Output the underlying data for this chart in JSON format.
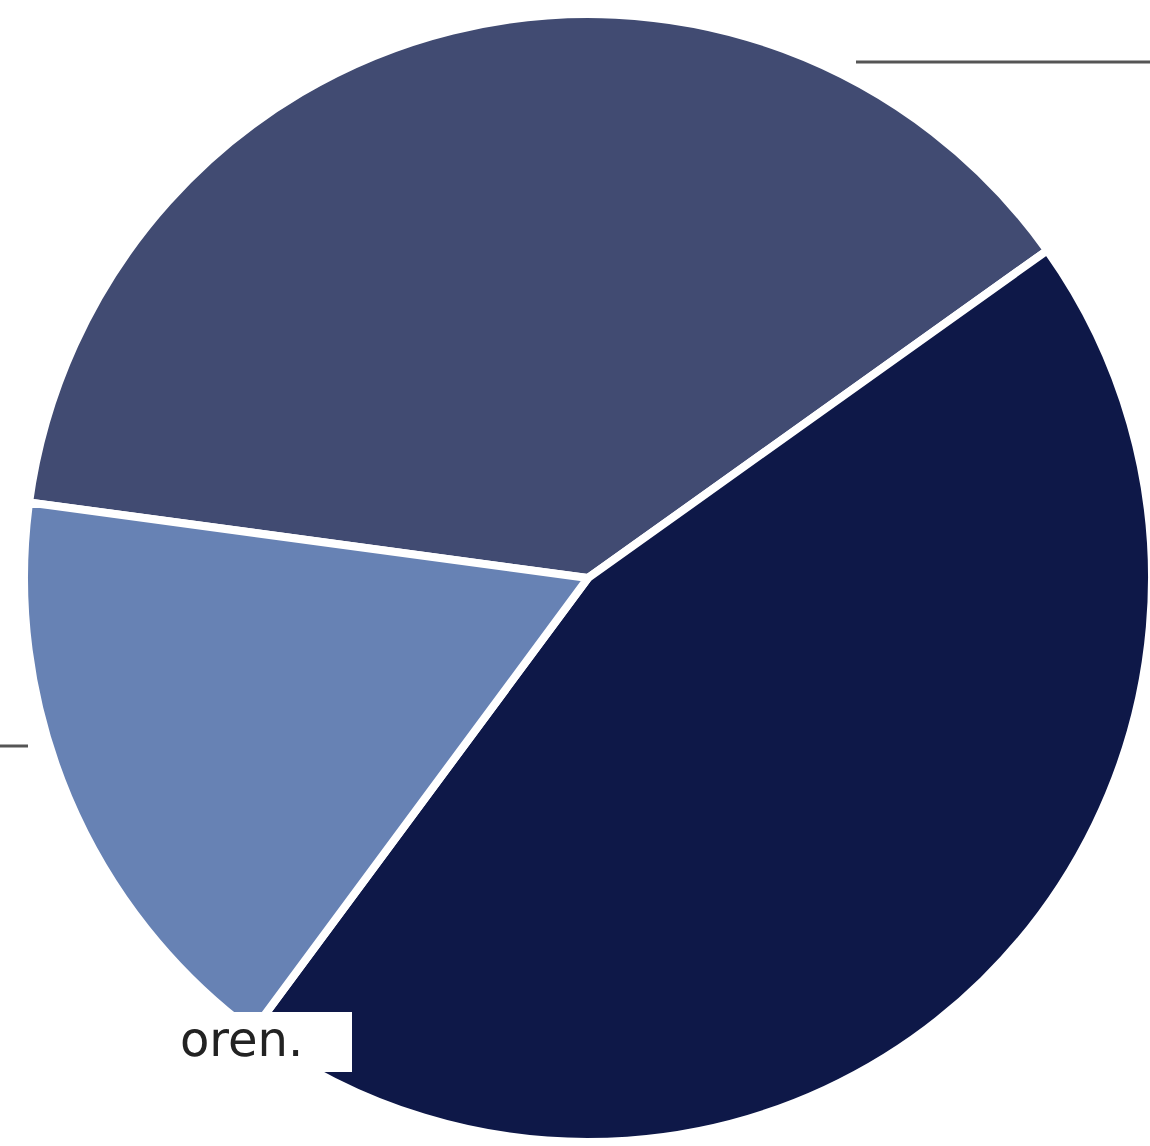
{
  "chart_data": {
    "type": "pie",
    "categories": [
      null,
      null,
      null
    ],
    "values": [
      38,
      45,
      17
    ],
    "colors": [
      "#414b72",
      "#0e1848",
      "#6782b4"
    ],
    "annotations": [
      "oren."
    ]
  }
}
